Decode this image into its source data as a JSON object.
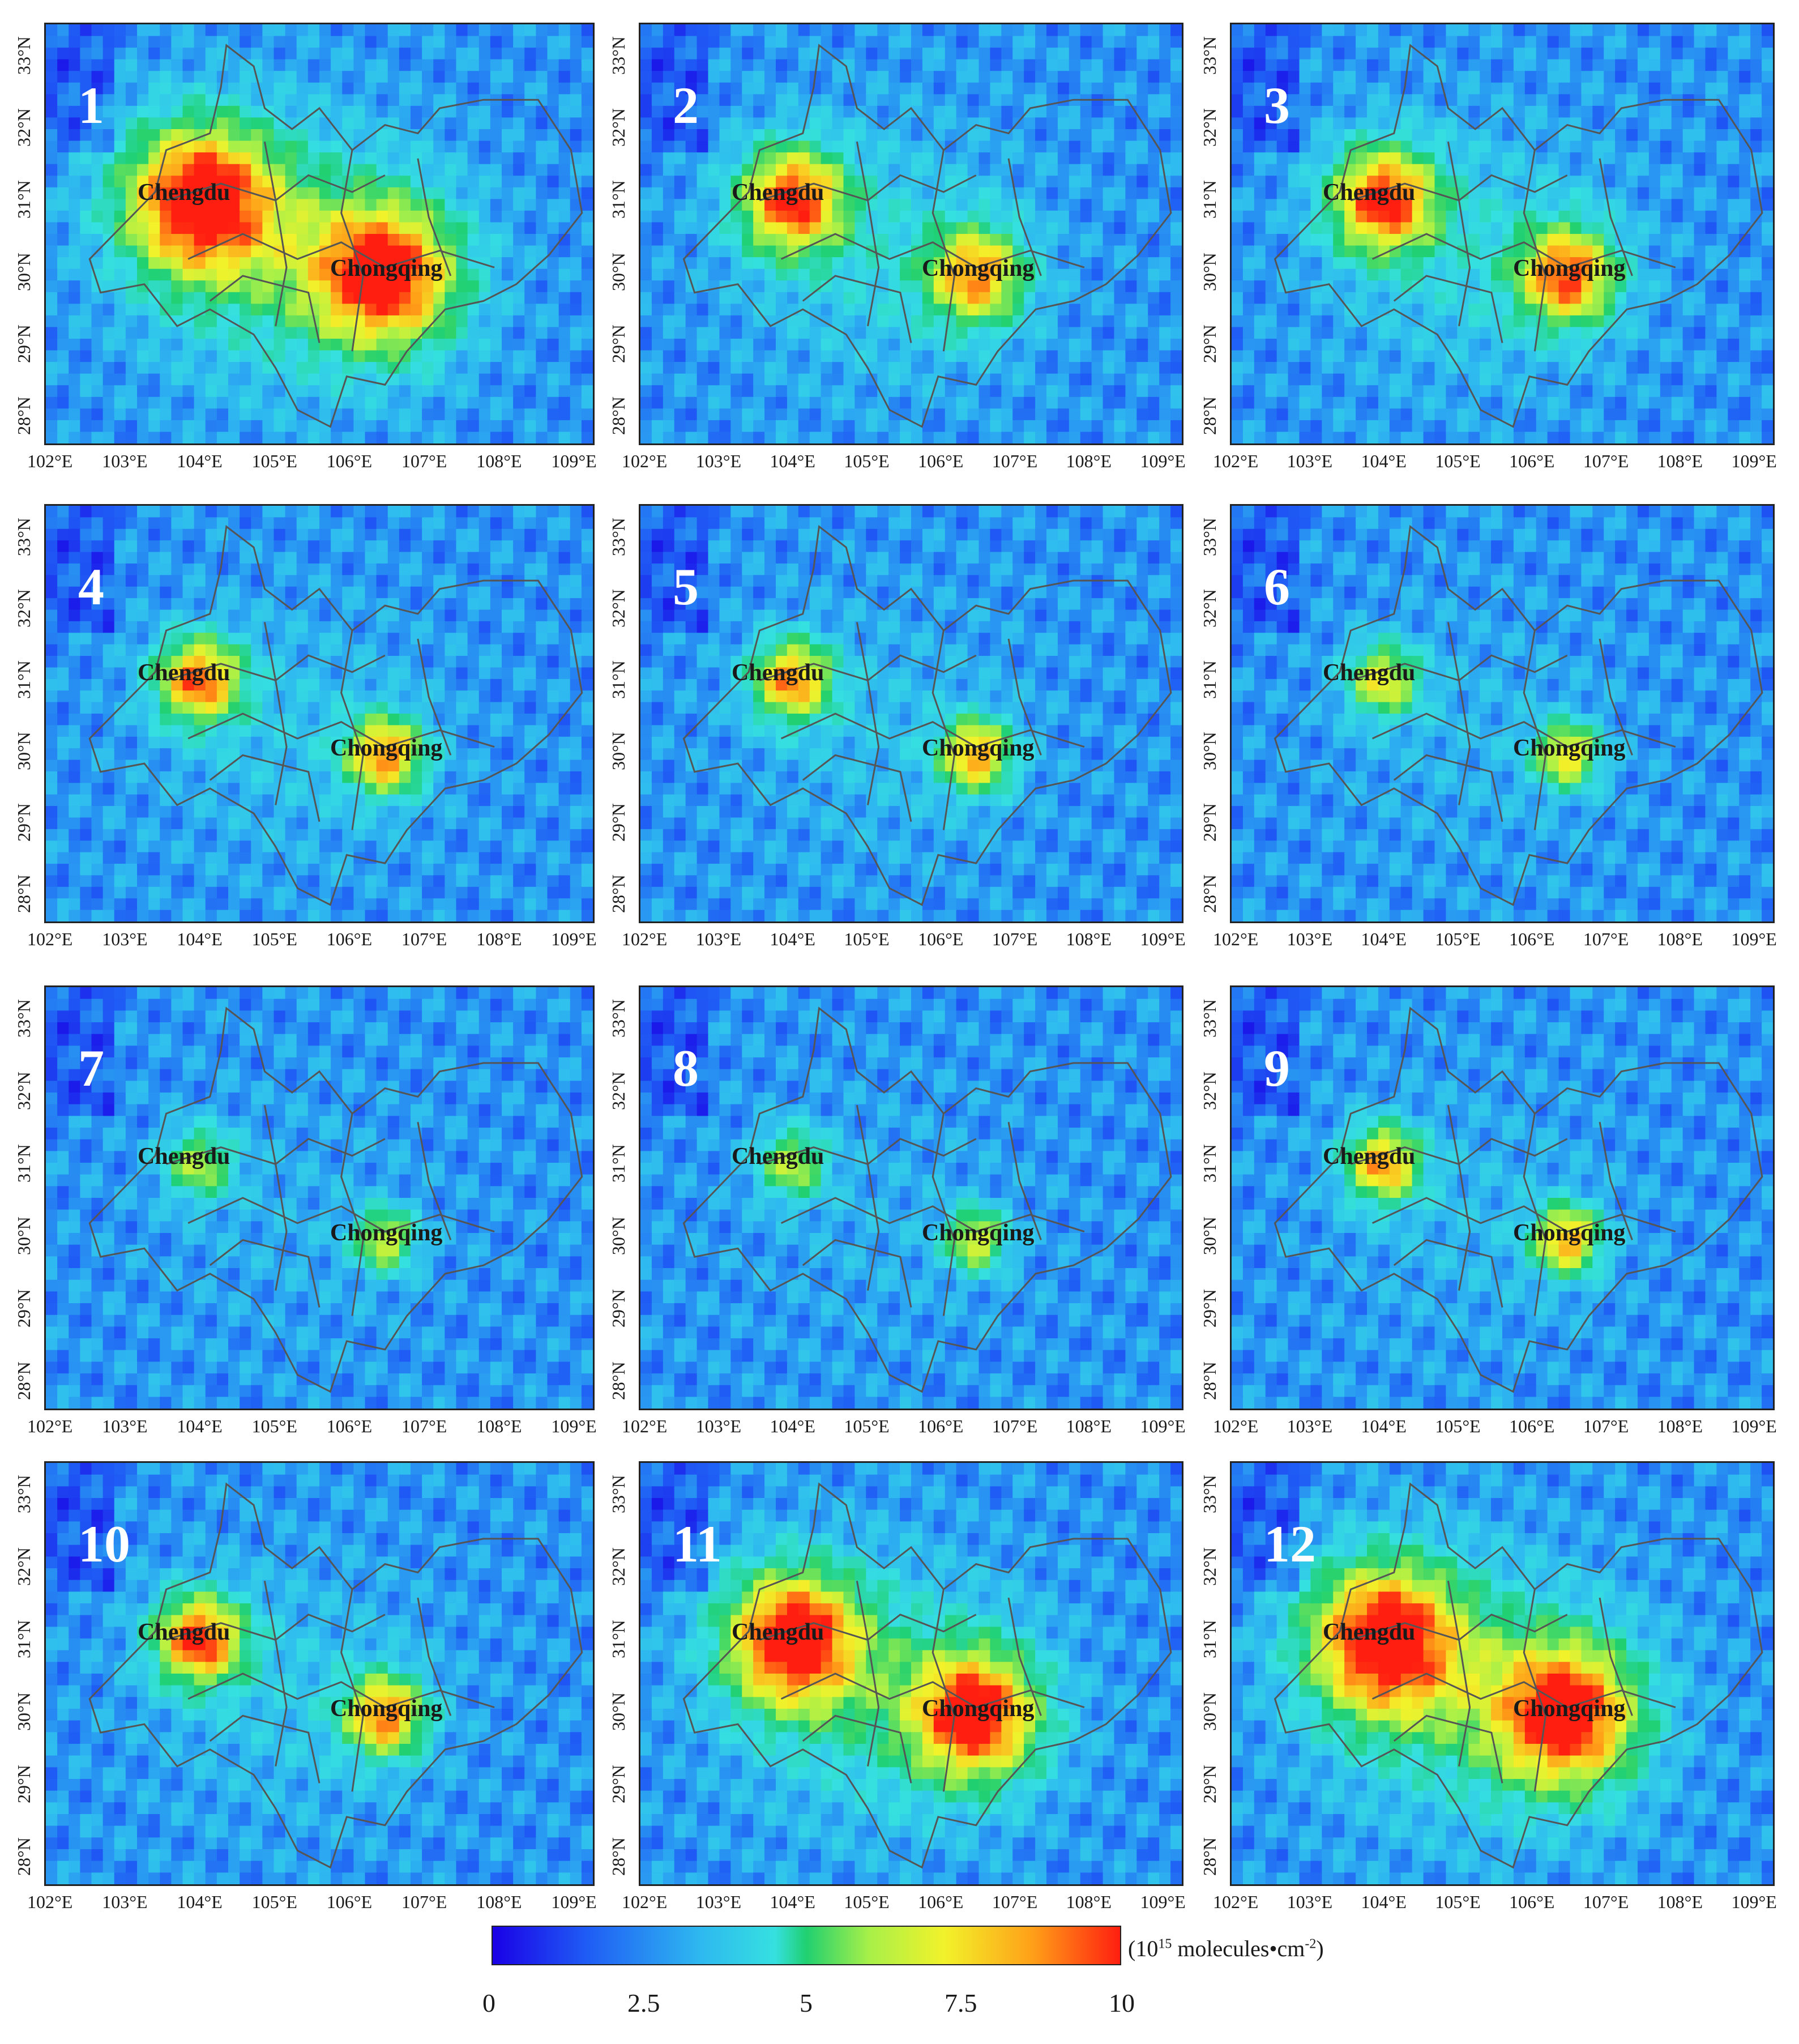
{
  "lat_labels": [
    "33°N",
    "32°N",
    "31°N",
    "30°N",
    "29°N",
    "28°N"
  ],
  "lon_labels": [
    "102°E",
    "103°E",
    "104°E",
    "105°E",
    "106°E",
    "107°E",
    "108°E",
    "109°E"
  ],
  "city_labels": {
    "chengdu": "Chengdu",
    "chongqing": "Chongqing"
  },
  "panels": [
    {
      "label": "1",
      "chengdu_intensity": 1.0,
      "chongqing_intensity": 1.0,
      "spread": 1.0
    },
    {
      "label": "2",
      "chengdu_intensity": 0.9,
      "chongqing_intensity": 0.8,
      "spread": 0.55
    },
    {
      "label": "3",
      "chengdu_intensity": 0.92,
      "chongqing_intensity": 0.9,
      "spread": 0.55
    },
    {
      "label": "4",
      "chengdu_intensity": 0.85,
      "chongqing_intensity": 0.85,
      "spread": 0.35
    },
    {
      "label": "5",
      "chengdu_intensity": 0.8,
      "chongqing_intensity": 0.82,
      "spread": 0.3
    },
    {
      "label": "6",
      "chengdu_intensity": 0.62,
      "chongqing_intensity": 0.72,
      "spread": 0.22
    },
    {
      "label": "7",
      "chengdu_intensity": 0.5,
      "chongqing_intensity": 0.62,
      "spread": 0.18
    },
    {
      "label": "8",
      "chengdu_intensity": 0.52,
      "chongqing_intensity": 0.65,
      "spread": 0.18
    },
    {
      "label": "9",
      "chengdu_intensity": 0.78,
      "chongqing_intensity": 0.82,
      "spread": 0.25
    },
    {
      "label": "10",
      "chengdu_intensity": 0.92,
      "chongqing_intensity": 0.86,
      "spread": 0.38
    },
    {
      "label": "11",
      "chengdu_intensity": 1.0,
      "chongqing_intensity": 1.0,
      "spread": 0.85
    },
    {
      "label": "12",
      "chengdu_intensity": 1.0,
      "chongqing_intensity": 1.0,
      "spread": 1.0
    }
  ],
  "colorbar": {
    "ticks": [
      "0",
      "2.5",
      "5",
      "7.5",
      "10"
    ],
    "unit_base": "(10",
    "unit_exp": "15",
    "unit_rest": " molecules•cm",
    "unit_exp2": "-2",
    "unit_close": ")",
    "colors": [
      "#1a00e6",
      "#1f5cf5",
      "#2eb8f0",
      "#35e0e0",
      "#20d070",
      "#a8f048",
      "#f2f22a",
      "#ffa018",
      "#ff1e10"
    ]
  }
}
